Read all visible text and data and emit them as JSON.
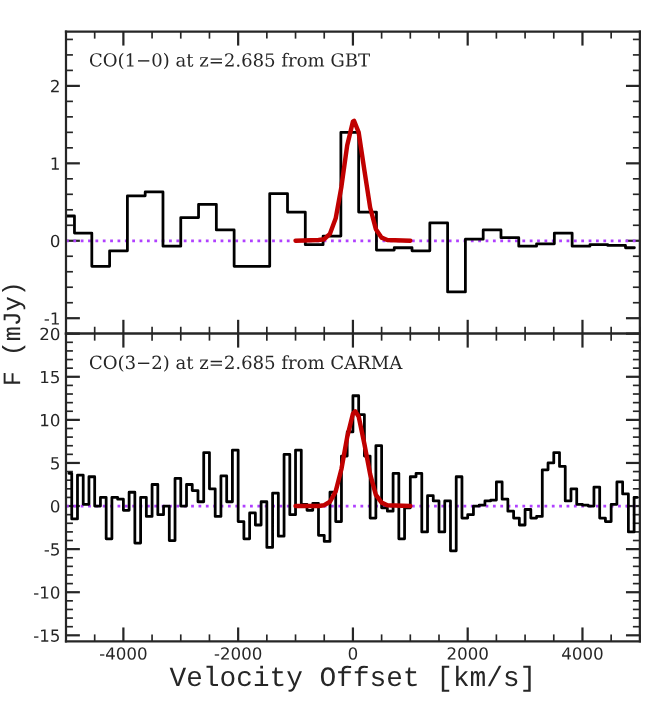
{
  "chart_data": [
    {
      "type": "step",
      "ylabel": "F (mJy)",
      "annotations": [
        "CO(1−0) at z=2.685 from GBT"
      ],
      "xlim": [
        -5000,
        5000
      ],
      "ylim": [
        -1.2,
        2.7
      ],
      "xticks": [
        -4000,
        -2000,
        0,
        2000,
        4000
      ],
      "yticks": [
        -1,
        0,
        1,
        2
      ],
      "tick_labels": "y",
      "ref_lines": [
        {
          "axis": "y",
          "value": 0,
          "color": "#b040ff",
          "line_style": "dotted"
        }
      ],
      "series": [
        {
          "type": "step",
          "color": "#000000",
          "x": [
            -5000,
            -4705,
            -4395,
            -4085,
            -3775,
            -3465,
            -3155,
            -2845,
            -2535,
            -2225,
            -1915,
            -1605,
            -1295,
            -985,
            -675,
            -365,
            -55,
            255,
            565,
            875,
            1185,
            1495,
            1805,
            2115,
            2425,
            2735,
            3045,
            3355,
            3665,
            3975,
            4285,
            4595,
            4905
          ],
          "values": [
            0.32,
            0.1,
            -0.33,
            -0.13,
            0.58,
            0.63,
            -0.07,
            0.3,
            0.47,
            0.14,
            -0.33,
            -0.33,
            0.61,
            0.37,
            -0.05,
            0.06,
            1.4,
            0.37,
            -0.12,
            -0.09,
            -0.13,
            0.23,
            -0.66,
            0.02,
            0.14,
            0.04,
            -0.07,
            -0.04,
            0.1,
            -0.07,
            -0.05,
            -0.06,
            -0.09
          ]
        },
        {
          "type": "line",
          "color": "#c00000",
          "x": [
            -1000,
            -600,
            -500,
            -400,
            -300,
            -200,
            -100,
            0,
            20,
            100,
            200,
            300,
            400,
            500,
            600,
            1000
          ],
          "values": [
            0,
            0.01,
            0.02,
            0.09,
            0.29,
            0.7,
            1.23,
            1.54,
            1.55,
            1.4,
            0.91,
            0.43,
            0.15,
            0.04,
            0.01,
            0
          ]
        }
      ]
    },
    {
      "type": "step",
      "xlabel": "Velocity Offset [km/s]",
      "annotations": [
        "CO(3−2) at z=2.685 from CARMA"
      ],
      "xlim": [
        -5000,
        5000
      ],
      "ylim": [
        -15.7,
        20
      ],
      "xticks": [
        -4000,
        -2000,
        0,
        2000,
        4000
      ],
      "yticks": [
        -15,
        -10,
        -5,
        0,
        5,
        10,
        15,
        20
      ],
      "ref_lines": [
        {
          "axis": "y",
          "value": 0,
          "color": "#b040ff",
          "line_style": "dotted"
        }
      ],
      "series": [
        {
          "type": "step",
          "color": "#000000",
          "x": [
            -4950,
            -4850,
            -4750,
            -4650,
            -4550,
            -4450,
            -4350,
            -4250,
            -4150,
            -4050,
            -3950,
            -3850,
            -3750,
            -3650,
            -3550,
            -3450,
            -3350,
            -3250,
            -3150,
            -3050,
            -2950,
            -2850,
            -2750,
            -2650,
            -2550,
            -2450,
            -2350,
            -2250,
            -2150,
            -2050,
            -1950,
            -1850,
            -1750,
            -1650,
            -1550,
            -1450,
            -1350,
            -1250,
            -1150,
            -1050,
            -950,
            -850,
            -750,
            -650,
            -550,
            -450,
            -350,
            -250,
            -150,
            -50,
            50,
            150,
            250,
            350,
            450,
            550,
            650,
            750,
            850,
            950,
            1050,
            1150,
            1250,
            1350,
            1450,
            1550,
            1650,
            1750,
            1850,
            1950,
            2050,
            2150,
            2250,
            2350,
            2450,
            2550,
            2650,
            2750,
            2850,
            2950,
            3050,
            3150,
            3250,
            3350,
            3450,
            3550,
            3650,
            3750,
            3850,
            3950,
            4050,
            4150,
            4250,
            4350,
            4450,
            4550,
            4650,
            4750,
            4850,
            4950
          ],
          "values": [
            3.8,
            -1.5,
            3.6,
            0.2,
            3.4,
            0.0,
            1.0,
            -3.8,
            1.0,
            0.8,
            -0.5,
            1.6,
            -4.3,
            1.0,
            -1.2,
            2.5,
            -1.0,
            0.0,
            -4.0,
            3.2,
            0.0,
            2.5,
            1.8,
            0.5,
            6.2,
            2.0,
            -1.2,
            3.5,
            0.5,
            6.5,
            -1.8,
            -3.8,
            -0.8,
            -2.2,
            0.5,
            -4.8,
            1.5,
            -3.5,
            6.0,
            -1.0,
            6.5,
            0.2,
            -0.5,
            0.3,
            -3.4,
            -4.1,
            1.6,
            -1.8,
            5.8,
            8.6,
            12.8,
            10.6,
            5.8,
            -1.4,
            7.0,
            -0.2,
            -0.6,
            3.8,
            -3.8,
            -0.2,
            3.4,
            3.8,
            -3.0,
            1.2,
            0.6,
            -3.0,
            0.6,
            -5.2,
            3.4,
            -1.4,
            -1.0,
            0.0,
            0.1,
            0.6,
            0.7,
            2.8,
            0.8,
            -0.6,
            -1.4,
            -2.2,
            -0.4,
            -1.4,
            -1.2,
            4.2,
            5.0,
            6.2,
            4.6,
            0.6,
            2.0,
            0.2,
            0.1,
            0.0,
            2.2,
            -1.4,
            -1.8,
            0.2,
            2.8,
            1.4,
            -3.0,
            1.0
          ]
        },
        {
          "type": "line",
          "color": "#c00000",
          "x": [
            -1000,
            -600,
            -500,
            -400,
            -300,
            -200,
            -100,
            0,
            40,
            100,
            200,
            300,
            400,
            500,
            600,
            1000
          ],
          "values": [
            0,
            0.0,
            0.1,
            0.5,
            1.7,
            4.3,
            8.0,
            10.7,
            11.0,
            10.4,
            7.2,
            3.7,
            1.3,
            0.4,
            0.1,
            0
          ]
        }
      ]
    }
  ]
}
